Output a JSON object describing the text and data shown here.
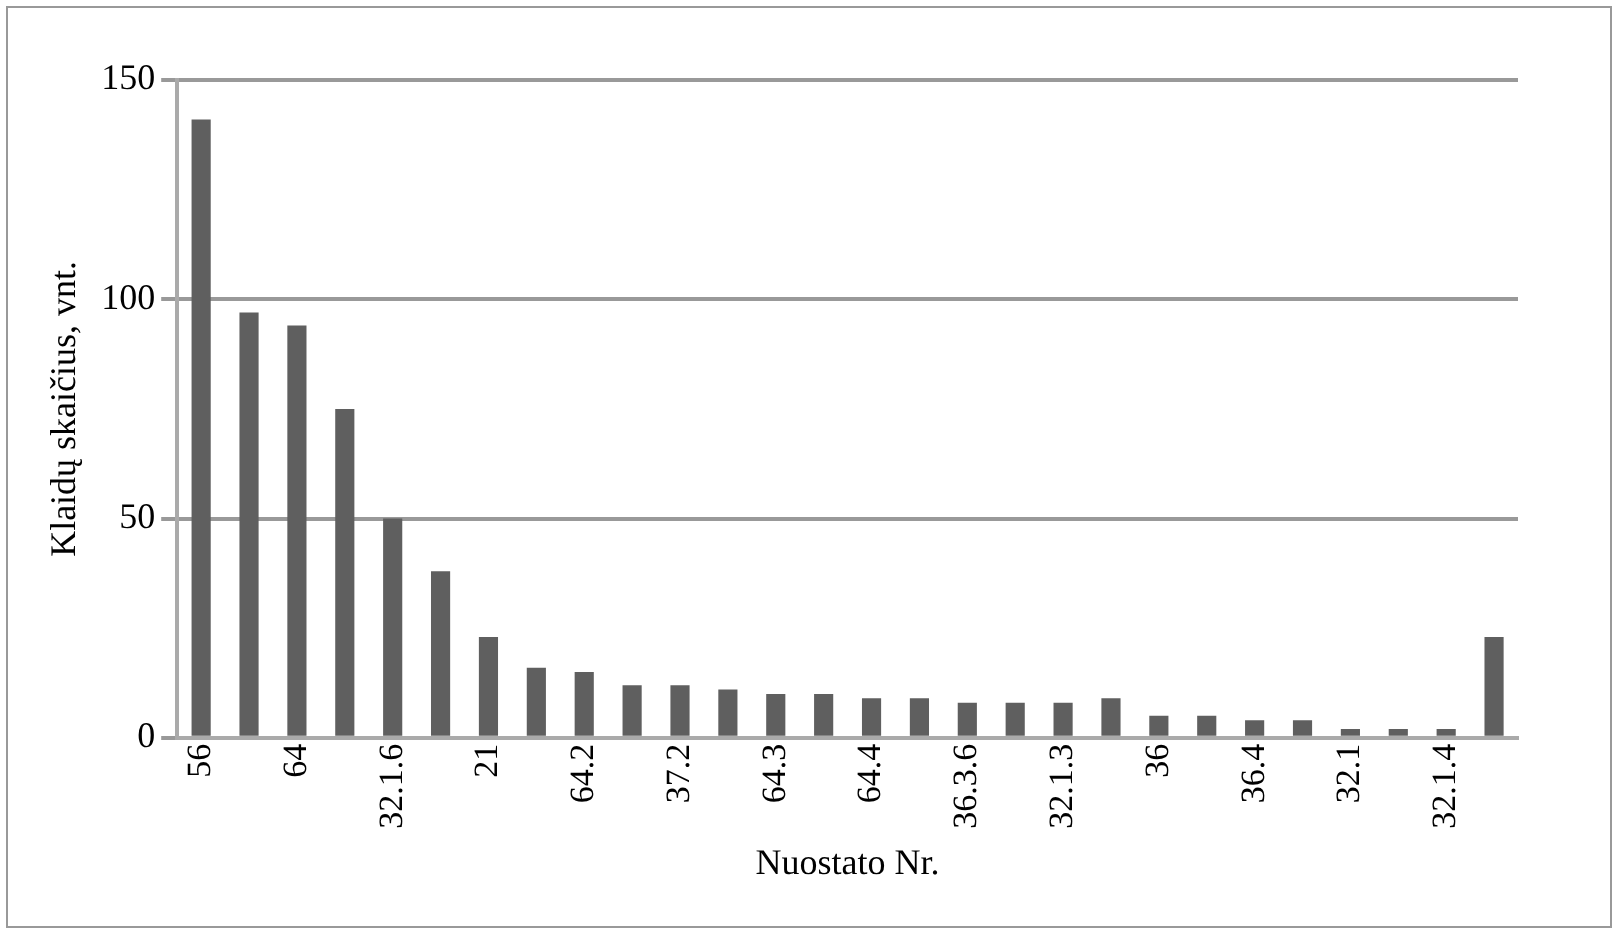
{
  "chart_data": {
    "type": "bar",
    "xlabel": "Nuostato Nr.",
    "ylabel": "Klaidų skaičius, vnt.",
    "categories": [
      "56",
      null,
      "64",
      null,
      "32.1.6",
      null,
      "21",
      null,
      "64.2",
      null,
      "37.2",
      null,
      "64.3",
      null,
      "64.4",
      null,
      "36.3.6",
      null,
      "32.1.3",
      null,
      "36",
      null,
      "36.4",
      null,
      "32.1",
      null,
      "32.1.4",
      null
    ],
    "values": [
      141,
      97,
      94,
      75,
      50,
      38,
      23,
      16,
      15,
      12,
      12,
      11,
      10,
      10,
      9,
      9,
      8,
      8,
      8,
      9,
      5,
      5,
      4,
      4,
      2,
      2,
      2,
      23
    ],
    "color": "#5f5f5f",
    "ylim": [
      0,
      150
    ],
    "yticks": [
      0,
      50,
      100,
      150
    ],
    "grid": "y"
  }
}
